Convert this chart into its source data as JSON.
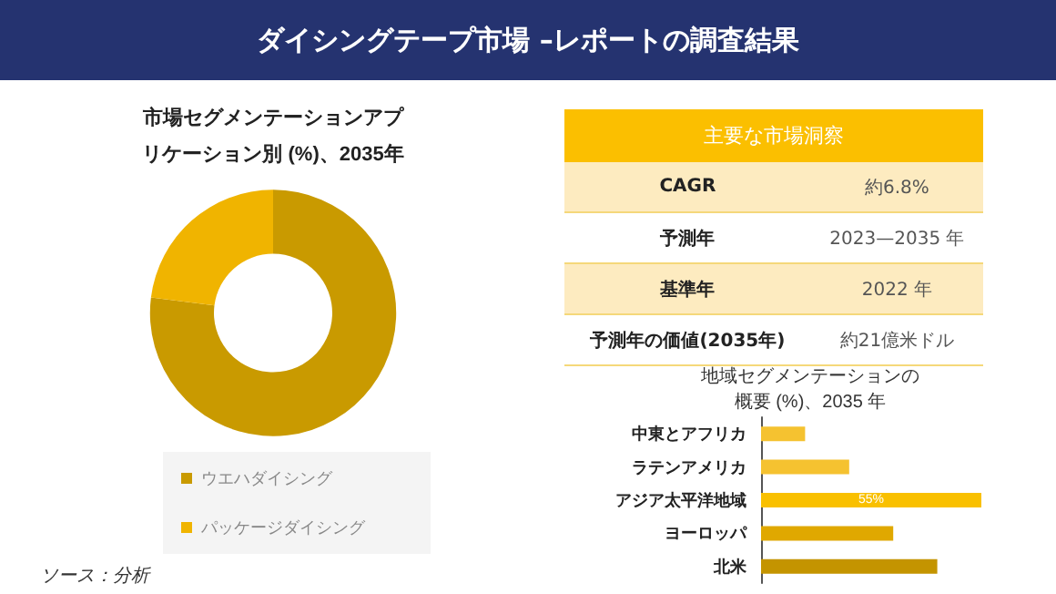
{
  "chart_data": [
    {
      "type": "donut",
      "title": "市場セグメンテーションアプリケーション別 (%)、2035年",
      "categories": [
        "ウエハダイシング",
        "パッケージダイシング"
      ],
      "values": [
        77,
        23
      ],
      "colors": [
        "#c99a00",
        "#f0b400"
      ],
      "legend": "bottom",
      "annotations": [
        "ソース：分析"
      ]
    },
    {
      "type": "other",
      "title": "ダイシングテープ市場 –レポートの調査結果",
      "subtitle": "主要な市場洞察",
      "annotations": [
        "CAGR",
        "約6.8%",
        "予測年",
        "2023—2035 年",
        "基準年",
        "2022 年",
        "予測年の価値(2035年)",
        "約21億米ドル"
      ]
    },
    {
      "type": "bar",
      "orientation": "horizontal",
      "title": "地域セグメンテーションの概要 (%)、2035 年",
      "categories": [
        "中東とアフリカ",
        "ラテンアメリカ",
        "アジア太平洋地域",
        "ヨーロッパ",
        "北米"
      ],
      "values": [
        11,
        22,
        55,
        33,
        44
      ],
      "colors": [
        "#f5c230",
        "#f5c230",
        "#f9c000",
        "#e0a800",
        "#c49400"
      ],
      "value_labels": [
        null,
        null,
        "55%",
        null,
        null
      ]
    }
  ]
}
